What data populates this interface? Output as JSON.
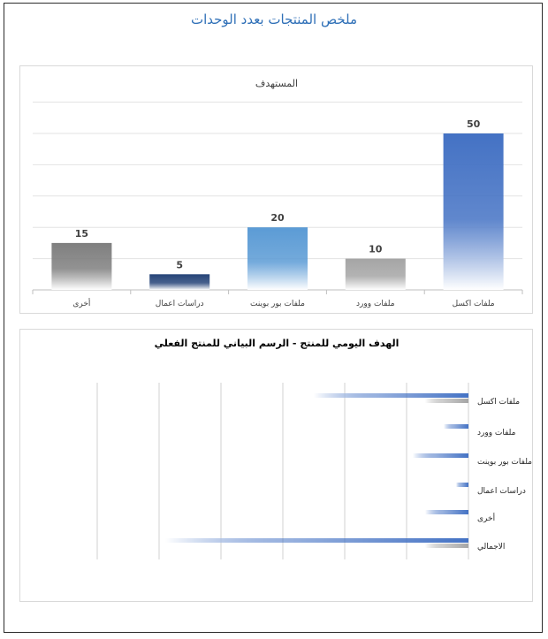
{
  "page": {
    "title": "ملخص المنتجات بعدد الوحدات"
  },
  "chart_data": [
    {
      "type": "bar",
      "title": "المستهدف",
      "categories": [
        "ملفات اكسل",
        "ملفات وورد",
        "ملفات بور بوينت",
        "دراسات اعمال",
        "أخرى"
      ],
      "values": [
        50,
        10,
        20,
        5,
        15
      ],
      "bar_colors": [
        "#4472c4",
        "#a5a5a5",
        "#5b9bd5",
        "#264478",
        "#7f7f7f"
      ],
      "ylim": [
        0,
        50
      ],
      "grid": true,
      "category_order": "right-to-left"
    },
    {
      "type": "bar",
      "orientation": "horizontal",
      "title": "الهدف اليومي للمنتج - الرسم البياني للمنتج الفعلي",
      "categories": [
        "ملفات اكسل",
        "ملفات وورد",
        "ملفات بور بوينت",
        "دراسات اعمال",
        "أخرى",
        "الاجمالي"
      ],
      "series": [
        {
          "values": [
            25,
            4,
            9,
            2,
            7,
            49
          ],
          "color": "#4472c4"
        },
        {
          "values": [
            7,
            0,
            0,
            0,
            0,
            7
          ],
          "color": "#a5a5a5"
        }
      ],
      "xlim": [
        0,
        60
      ],
      "grid": true,
      "category_axis": "right"
    }
  ]
}
